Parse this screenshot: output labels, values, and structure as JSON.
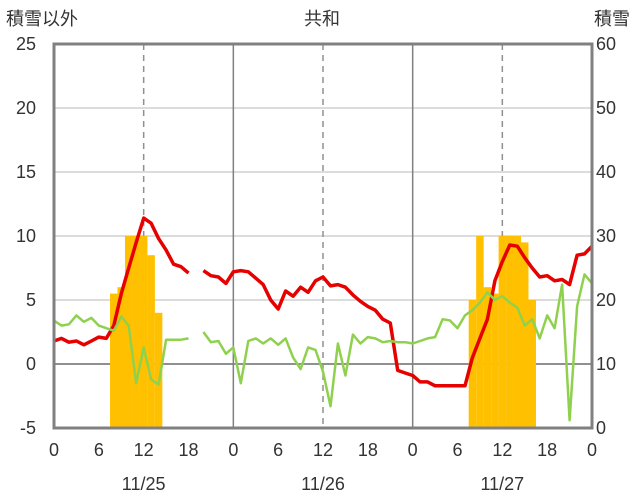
{
  "chart_data": {
    "type": "bar+line",
    "title": "共和",
    "left_axis_title": "積雪以外",
    "right_axis_title": "積雪",
    "y_left": {
      "min": -5,
      "max": 25,
      "ticks": [
        -5,
        0,
        5,
        10,
        15,
        20,
        25
      ]
    },
    "y_right": {
      "min": 0,
      "max": 60,
      "ticks": [
        0,
        10,
        20,
        30,
        40,
        50,
        60
      ]
    },
    "x": {
      "min": 0,
      "max": 72,
      "tick_hours": [
        0,
        6,
        12,
        18,
        24,
        30,
        36,
        42,
        48,
        54,
        60,
        66,
        72
      ],
      "tick_labels": [
        "0",
        "6",
        "12",
        "18",
        "0",
        "6",
        "12",
        "18",
        "0",
        "6",
        "12",
        "18",
        "0"
      ]
    },
    "dates": [
      {
        "label": "11/25",
        "center_hour": 12
      },
      {
        "label": "11/26",
        "center_hour": 36
      },
      {
        "label": "11/27",
        "center_hour": 60
      }
    ],
    "colors": {
      "temperature": "#e60000",
      "wind": "#8fd14f",
      "snow_depth": "#ffc000",
      "baseline": "#7030a0",
      "frame": "#808080"
    },
    "series": [
      {
        "kind": "bar",
        "axis": "right",
        "values": [
          [
            8,
            21
          ],
          [
            9,
            22
          ],
          [
            10,
            30
          ],
          [
            11,
            30
          ],
          [
            12,
            30
          ],
          [
            13,
            27
          ],
          [
            14,
            18
          ],
          [
            56,
            20
          ],
          [
            57,
            30
          ],
          [
            58,
            22
          ],
          [
            59,
            21
          ],
          [
            60,
            30
          ],
          [
            61,
            30
          ],
          [
            62,
            30
          ],
          [
            63,
            29
          ],
          [
            64,
            20
          ]
        ]
      },
      {
        "kind": "line",
        "axis": "left",
        "values": [
          [
            0,
            1.8
          ],
          [
            1,
            2.0
          ],
          [
            2,
            1.7
          ],
          [
            3,
            1.8
          ],
          [
            4,
            1.5
          ],
          [
            5,
            1.8
          ],
          [
            6,
            2.1
          ],
          [
            7,
            2.0
          ],
          [
            8,
            3.0
          ],
          [
            9,
            5.5
          ],
          [
            10,
            7.5
          ],
          [
            11,
            9.5
          ],
          [
            12,
            11.4
          ],
          [
            13,
            11.0
          ],
          [
            14,
            9.8
          ],
          [
            15,
            8.9
          ],
          [
            16,
            7.8
          ],
          [
            17,
            7.6
          ],
          [
            18,
            7.1
          ],
          [
            20,
            7.3
          ],
          [
            21,
            6.9
          ],
          [
            22,
            6.8
          ],
          [
            23,
            6.3
          ],
          [
            24,
            7.2
          ],
          [
            25,
            7.3
          ],
          [
            26,
            7.2
          ],
          [
            27,
            6.7
          ],
          [
            28,
            6.2
          ],
          [
            29,
            5.0
          ],
          [
            30,
            4.3
          ],
          [
            31,
            5.7
          ],
          [
            32,
            5.3
          ],
          [
            33,
            6.0
          ],
          [
            34,
            5.6
          ],
          [
            35,
            6.5
          ],
          [
            36,
            6.8
          ],
          [
            37,
            6.1
          ],
          [
            38,
            6.2
          ],
          [
            39,
            6.0
          ],
          [
            40,
            5.4
          ],
          [
            41,
            4.9
          ],
          [
            42,
            4.5
          ],
          [
            43,
            4.2
          ],
          [
            44,
            3.5
          ],
          [
            45,
            3.2
          ],
          [
            46,
            -0.5
          ],
          [
            47,
            -0.7
          ],
          [
            48,
            -0.9
          ],
          [
            49,
            -1.4
          ],
          [
            50,
            -1.4
          ],
          [
            51,
            -1.7
          ],
          [
            52,
            -1.7
          ],
          [
            53,
            -1.7
          ],
          [
            54,
            -1.7
          ],
          [
            55,
            -1.7
          ],
          [
            56,
            0.5
          ],
          [
            57,
            2.0
          ],
          [
            58,
            3.5
          ],
          [
            59,
            6.5
          ],
          [
            60,
            8.0
          ],
          [
            61,
            9.3
          ],
          [
            62,
            9.2
          ],
          [
            63,
            8.3
          ],
          [
            64,
            7.5
          ],
          [
            65,
            6.8
          ],
          [
            66,
            6.9
          ],
          [
            67,
            6.5
          ],
          [
            68,
            6.6
          ],
          [
            69,
            6.2
          ],
          [
            70,
            8.5
          ],
          [
            71,
            8.6
          ],
          [
            72,
            9.2
          ]
        ]
      },
      {
        "kind": "line",
        "axis": "left",
        "values": [
          [
            0,
            3.4
          ],
          [
            1,
            3.0
          ],
          [
            2,
            3.1
          ],
          [
            3,
            3.8
          ],
          [
            4,
            3.3
          ],
          [
            5,
            3.6
          ],
          [
            6,
            3.0
          ],
          [
            7,
            2.8
          ],
          [
            8,
            2.6
          ],
          [
            9,
            3.7
          ],
          [
            10,
            3.0
          ],
          [
            11,
            -1.5
          ],
          [
            12,
            1.3
          ],
          [
            13,
            -1.2
          ],
          [
            14,
            -1.6
          ],
          [
            15,
            1.9
          ],
          [
            16,
            1.9
          ],
          [
            17,
            1.9
          ],
          [
            18,
            2.0
          ],
          [
            20,
            2.5
          ],
          [
            21,
            1.7
          ],
          [
            22,
            1.8
          ],
          [
            23,
            0.8
          ],
          [
            24,
            1.3
          ],
          [
            25,
            -1.5
          ],
          [
            26,
            1.8
          ],
          [
            27,
            2.0
          ],
          [
            28,
            1.6
          ],
          [
            29,
            2.0
          ],
          [
            30,
            1.5
          ],
          [
            31,
            2.0
          ],
          [
            32,
            0.5
          ],
          [
            33,
            -0.4
          ],
          [
            34,
            1.3
          ],
          [
            35,
            1.1
          ],
          [
            36,
            -0.6
          ],
          [
            37,
            -3.3
          ],
          [
            38,
            1.6
          ],
          [
            39,
            -0.9
          ],
          [
            40,
            2.3
          ],
          [
            41,
            1.6
          ],
          [
            42,
            2.1
          ],
          [
            43,
            2.0
          ],
          [
            44,
            1.7
          ],
          [
            45,
            1.8
          ],
          [
            46,
            1.7
          ],
          [
            47,
            1.7
          ],
          [
            48,
            1.6
          ],
          [
            49,
            1.8
          ],
          [
            50,
            2.0
          ],
          [
            51,
            2.1
          ],
          [
            52,
            3.5
          ],
          [
            53,
            3.4
          ],
          [
            54,
            2.8
          ],
          [
            55,
            3.8
          ],
          [
            56,
            4.2
          ],
          [
            57,
            4.8
          ],
          [
            58,
            5.6
          ],
          [
            59,
            5.0
          ],
          [
            60,
            5.3
          ],
          [
            61,
            4.8
          ],
          [
            62,
            4.4
          ],
          [
            63,
            3.0
          ],
          [
            64,
            3.5
          ],
          [
            65,
            2.0
          ],
          [
            66,
            3.8
          ],
          [
            67,
            2.8
          ],
          [
            68,
            6.2
          ],
          [
            69,
            -4.4
          ],
          [
            70,
            4.5
          ],
          [
            71,
            7.0
          ],
          [
            72,
            6.3
          ]
        ]
      },
      {
        "kind": "line",
        "axis": "left",
        "values": [
          [
            0,
            -5
          ],
          [
            72,
            -5
          ]
        ]
      }
    ]
  }
}
